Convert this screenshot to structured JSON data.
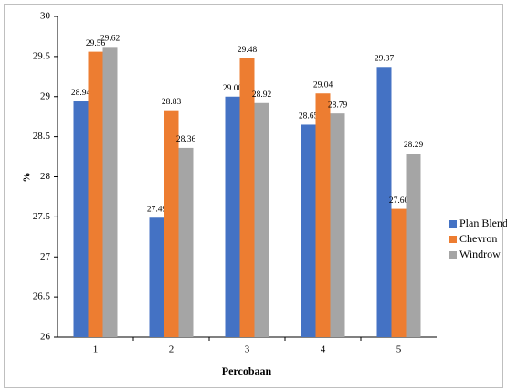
{
  "chart_data": {
    "type": "bar",
    "x_label": "Percobaan",
    "y_label": "%",
    "categories": [
      "1",
      "2",
      "3",
      "4",
      "5"
    ],
    "series": [
      {
        "name": "Plan Blend",
        "color": "#4472c4",
        "values": [
          28.94,
          27.49,
          29.0,
          28.65,
          29.37
        ],
        "value_labels": [
          "28.94",
          "27.49",
          "29.00",
          "28.65",
          "29.37"
        ]
      },
      {
        "name": "Chevron",
        "color": "#ed7d31",
        "values": [
          29.56,
          28.83,
          29.48,
          29.04,
          27.6
        ],
        "value_labels": [
          "29.56",
          "28.83",
          "29.48",
          "29.04",
          "27.60"
        ]
      },
      {
        "name": "Windrow",
        "color": "#a5a5a5",
        "values": [
          29.62,
          28.36,
          28.92,
          28.79,
          28.29
        ],
        "value_labels": [
          "29.62",
          "28.36",
          "28.92",
          "28.79",
          "28.29"
        ]
      }
    ],
    "ylim": [
      26,
      30
    ],
    "yticks": [
      26,
      26.5,
      27,
      27.5,
      28,
      28.5,
      29,
      29.5,
      30
    ],
    "grid": false,
    "legend": "right"
  }
}
